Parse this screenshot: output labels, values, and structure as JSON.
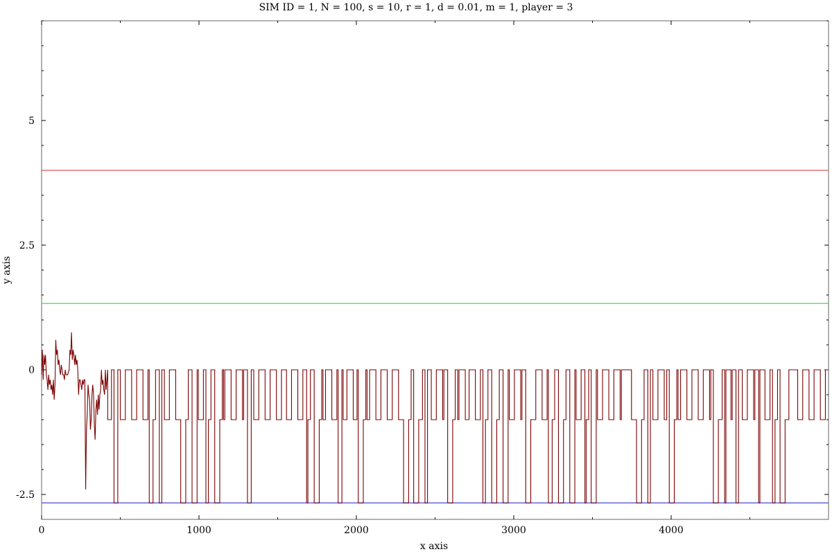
{
  "chart_data": {
    "type": "line",
    "title": "SIM ID = 1, N = 100, s = 10, r = 1, d = 0.01, m = 1, player = 3",
    "xlabel": "x axis",
    "ylabel": "y axis",
    "xlim": [
      0,
      5000
    ],
    "ylim": [
      -3,
      7
    ],
    "x_ticks": [
      0,
      1000,
      2000,
      3000,
      4000
    ],
    "x_tick_labels": [
      "0",
      "1000",
      "2000",
      "3000",
      "4000"
    ],
    "y_ticks": [
      -2.5,
      0,
      2.5,
      5
    ],
    "y_tick_labels": [
      "-2.5",
      "0",
      "2.5",
      "5"
    ],
    "grid": false,
    "series": [
      {
        "color": "#e07070",
        "kind": "hline",
        "y": 4.0
      },
      {
        "color": "#66dd66",
        "kind": "hline",
        "y": 1.33
      },
      {
        "color": "#6666dd",
        "kind": "hline",
        "y": -2.67
      },
      {
        "color": "#7a0000",
        "kind": "step",
        "initial": {
          "x": [
            0,
            5,
            10,
            15,
            20,
            25,
            30,
            35,
            40,
            45,
            50,
            55,
            60,
            65,
            70,
            75,
            80,
            85,
            90,
            95,
            100,
            105,
            110,
            115,
            120,
            125,
            130,
            135,
            140,
            145,
            150,
            155,
            160,
            165,
            170,
            175,
            180,
            185,
            190,
            195,
            200,
            205,
            210,
            215,
            220,
            225,
            230,
            235,
            240,
            245,
            250,
            255,
            260,
            265,
            270,
            275,
            280,
            285,
            290,
            295,
            300,
            305,
            310,
            315,
            320,
            325,
            330,
            335,
            340,
            345,
            350,
            355,
            360,
            365,
            370,
            375,
            380,
            385,
            390,
            395,
            400,
            405,
            410,
            415,
            420
          ],
          "y": [
            -0.1,
            0.4,
            -0.2,
            0.3,
            0.1,
            0.3,
            -0.1,
            -0.2,
            -0.4,
            -0.1,
            -0.3,
            -0.2,
            -0.4,
            -0.3,
            -0.5,
            -0.2,
            -0.6,
            -0.3,
            0.6,
            0.3,
            0.4,
            0.1,
            0.2,
            0.0,
            -0.1,
            0.1,
            0.0,
            -0.1,
            -0.1,
            -0.2,
            0.0,
            -0.1,
            -0.1,
            -0.1,
            -0.05,
            0.0,
            0.4,
            0.3,
            0.75,
            0.2,
            0.4,
            0.3,
            0.1,
            0.3,
            0.1,
            0.2,
            0.0,
            -0.5,
            -0.2,
            -0.2,
            -0.3,
            -0.4,
            -0.2,
            -0.3,
            -0.2,
            -0.2,
            -2.4,
            -1.2,
            -0.9,
            -0.3,
            -0.5,
            -0.6,
            -1.2,
            -1.0,
            -0.5,
            -0.3,
            -0.5,
            -1.1,
            -1.4,
            -0.8,
            -0.6,
            -0.9,
            -0.5,
            -0.8,
            -0.5,
            -0.4,
            0.0,
            -0.3,
            -0.2,
            -0.4,
            -0.5,
            0.0,
            -0.4,
            -0.2,
            0.0
          ]
        },
        "levels": [
          0,
          -1,
          -2.67
        ],
        "steps_from_x": 420,
        "steps_to_x": 5000,
        "step_spacing": 8,
        "dense_neg_regions": [
          [
            420,
            480
          ],
          [
            680,
            760
          ],
          [
            880,
            980
          ],
          [
            1040,
            1150
          ],
          [
            1280,
            1330
          ],
          [
            1680,
            1780
          ],
          [
            1880,
            1900
          ],
          [
            2000,
            2060
          ],
          [
            2300,
            2450
          ],
          [
            2550,
            2640
          ],
          [
            2800,
            2960
          ],
          [
            3050,
            3120
          ],
          [
            3220,
            3380
          ],
          [
            3450,
            3520
          ],
          [
            3680,
            3700
          ],
          [
            3780,
            3860
          ],
          [
            3960,
            4040
          ],
          [
            4240,
            4340
          ],
          [
            4380,
            4420
          ],
          [
            4520,
            4560
          ],
          [
            4640,
            4760
          ]
        ]
      }
    ]
  }
}
